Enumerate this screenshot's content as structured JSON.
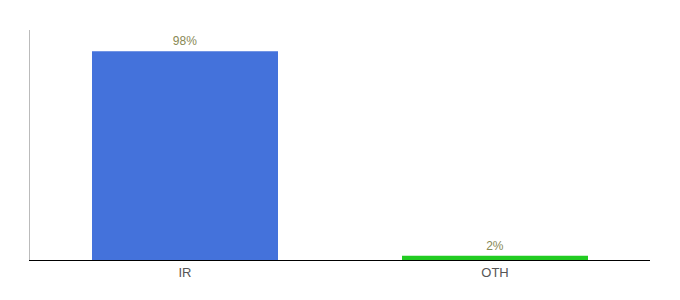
{
  "chart_data": {
    "type": "bar",
    "categories": [
      "IR",
      "OTH"
    ],
    "values": [
      98,
      2
    ],
    "value_labels": [
      "98%",
      "2%"
    ],
    "colors": [
      "#4472db",
      "#22cc22"
    ],
    "ylim": [
      0,
      108
    ],
    "data_labels": true,
    "tick_labels": "x",
    "grid": false
  }
}
